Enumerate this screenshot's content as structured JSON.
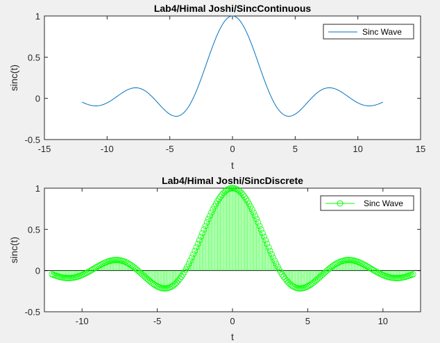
{
  "chart_data": [
    {
      "type": "line",
      "title": "Lab4/Himal Joshi/SincContinuous",
      "xlabel": "t",
      "ylabel": "sinc(t)",
      "xlim": [
        -15,
        15
      ],
      "ylim": [
        -0.5,
        1
      ],
      "xticks": [
        -15,
        -10,
        -5,
        0,
        5,
        10,
        15
      ],
      "yticks": [
        -0.5,
        0,
        0.5,
        1
      ],
      "grid": false,
      "legend": "top-right",
      "series": [
        {
          "name": "Sinc Wave",
          "color": "#0072bd",
          "function": "sin(t)/t",
          "x_range": [
            -12,
            12
          ],
          "sample_points": [
            [
              -12,
              -0.045
            ],
            [
              -10,
              -0.054
            ],
            [
              -7.73,
              0.128
            ],
            [
              -4.49,
              -0.217
            ],
            [
              0,
              1
            ],
            [
              4.49,
              -0.217
            ],
            [
              7.73,
              0.128
            ],
            [
              10,
              -0.054
            ],
            [
              12,
              -0.045
            ]
          ]
        }
      ]
    },
    {
      "type": "stem",
      "title": "Lab4/Himal Joshi/SincDiscrete",
      "xlabel": "t",
      "ylabel": "sinc(t)",
      "xlim": [
        -12.5,
        12.5
      ],
      "ylim": [
        -0.5,
        1
      ],
      "xticks": [
        -10,
        -5,
        0,
        5,
        10
      ],
      "yticks": [
        -0.5,
        0,
        0.5,
        1
      ],
      "grid": false,
      "legend": "top-right",
      "series": [
        {
          "name": "Sinc Wave",
          "color": "#00ff00",
          "marker": "circle",
          "function": "sin(t)/t",
          "x_range": [
            -12,
            12
          ],
          "step": 0.1,
          "sample_points": [
            [
              -12,
              -0.045
            ],
            [
              -7.7,
              0.128
            ],
            [
              -4.5,
              -0.217
            ],
            [
              0,
              1
            ],
            [
              4.5,
              -0.217
            ],
            [
              7.7,
              0.128
            ],
            [
              12,
              -0.045
            ]
          ]
        }
      ]
    }
  ]
}
